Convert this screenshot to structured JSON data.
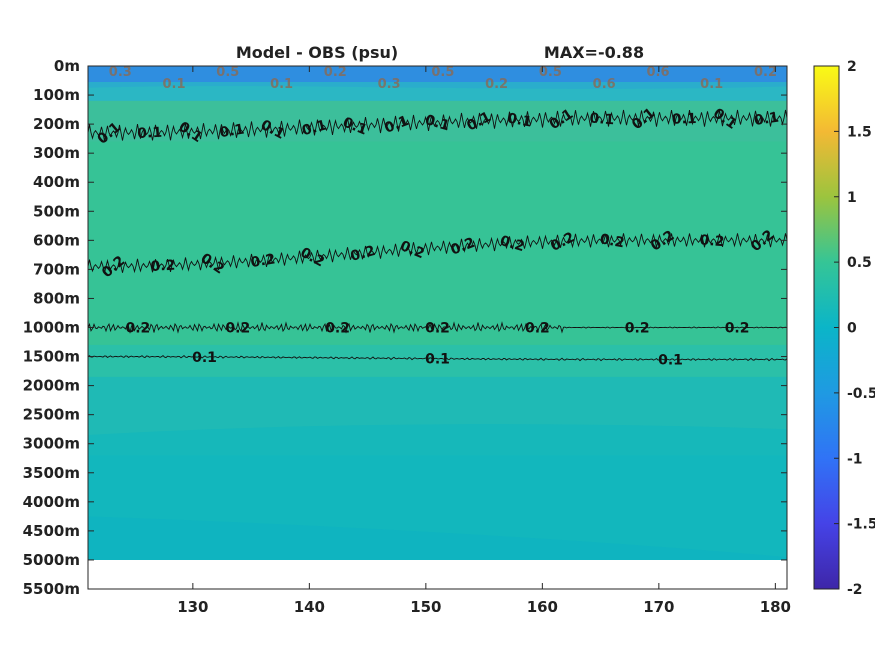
{
  "chart_data": {
    "type": "heatmap",
    "title": "Model - OBS (psu)",
    "max_label": "MAX=-0.88",
    "x_ticks": [
      130,
      140,
      150,
      160,
      170,
      180
    ],
    "x_range": [
      121,
      181
    ],
    "y_ticks": [
      "0m",
      "100m",
      "200m",
      "300m",
      "400m",
      "500m",
      "600m",
      "700m",
      "800m",
      "1000m",
      "1500m",
      "2000m",
      "2500m",
      "3000m",
      "3500m",
      "4000m",
      "4500m",
      "5000m",
      "5500m"
    ],
    "colorbar": {
      "range": [
        -2,
        2
      ],
      "ticks": [
        "2",
        "1.5",
        "1",
        "0.5",
        "0",
        "-0.5",
        "-1",
        "-1.5",
        "-2"
      ],
      "colormap": "parula"
    },
    "field_colors": {
      "surface": "#2f8ee0",
      "subsurface": "#2bb7c4",
      "upper": "#3cbf9b",
      "main": "#36c396",
      "mid": "#2bc0a8",
      "deep": "#1fbab5",
      "abyss": "#12b7bd",
      "nodata": "#ffffff"
    },
    "contours": [
      {
        "level": 0.1,
        "depth_index_start": 2.3,
        "depth_index_end": 1.8,
        "labels": [
          "0.1",
          "0.1",
          "0.1",
          "0.1",
          "0.1",
          "0.1",
          "0.1",
          "0.1",
          "0.1",
          "0.1",
          "0.1",
          "0.1",
          "0.1",
          "0.1",
          "0.1",
          "0.1",
          "0.1"
        ]
      },
      {
        "level": 0.2,
        "depth_index_start": 6.9,
        "depth_index_end": 6.0,
        "labels": [
          "0.2",
          "0.2",
          "0.2",
          "0.2",
          "0.2",
          "0.2",
          "0.2",
          "0.2",
          "0.2",
          "0.2",
          "0.2",
          "0.2",
          "0.2",
          "0.2"
        ]
      },
      {
        "level": 0.2,
        "depth_index_start": 9.0,
        "depth_index_end": 9.0,
        "labels": [
          "0.2",
          "0.2",
          "0.2",
          "0.2",
          "0.2",
          "0.2",
          "0.2"
        ]
      },
      {
        "level": 0.1,
        "depth_index_start": 10.0,
        "depth_index_end": 10.1,
        "labels": [
          "0.1",
          "0.1",
          "0.1"
        ]
      }
    ],
    "surface_labels": [
      "0.3",
      "0.1",
      "0.5",
      "0.1",
      "0.2",
      "0.3",
      "0.5",
      "0.2",
      "0.5",
      "0.6",
      "0.6",
      "0.1",
      "0.2"
    ]
  }
}
